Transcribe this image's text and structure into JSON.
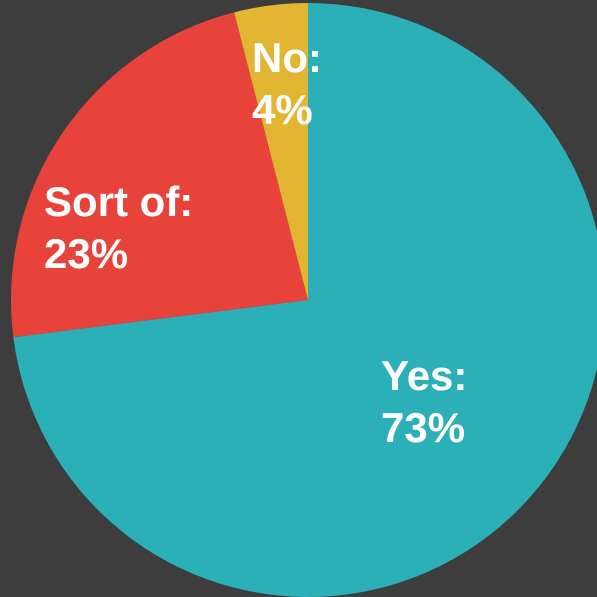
{
  "chart_data": {
    "type": "pie",
    "slices": [
      {
        "name": "Yes",
        "label": "Yes:",
        "value": 73,
        "value_label": "73%",
        "color": "#2bb0b8"
      },
      {
        "name": "Sort of",
        "label": "Sort of:",
        "value": 23,
        "value_label": "23%",
        "color": "#e8433b"
      },
      {
        "name": "No",
        "label": "No:",
        "value": 4,
        "value_label": "4%",
        "color": "#e2b533"
      }
    ],
    "start": "top",
    "direction": "clockwise",
    "background": "#3d3d3d",
    "legend": "none"
  }
}
